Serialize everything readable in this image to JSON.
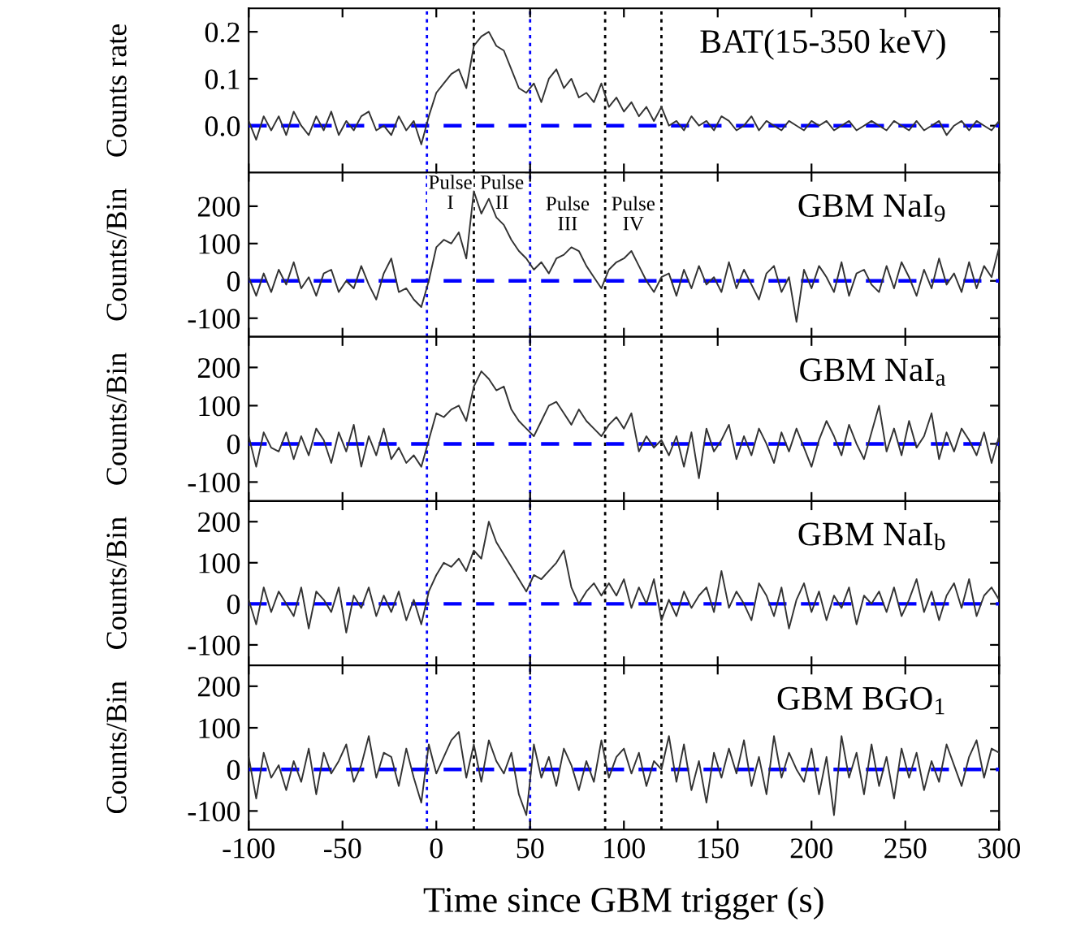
{
  "chart_data": [
    {
      "type": "line",
      "title": "BAT(15-350 keV)",
      "ylabel": "Counts rate",
      "xlim": [
        -100,
        300
      ],
      "xticks": [
        -100,
        -50,
        0,
        50,
        100,
        150,
        200,
        250,
        300
      ],
      "ylim": [
        -0.1,
        0.25
      ],
      "yticks": [
        {
          "value": 0,
          "label": "0.0"
        },
        0.1,
        0.2
      ],
      "tick_labels": "y",
      "grid": false,
      "legend": false,
      "x": [
        -100,
        -96,
        -92,
        -88,
        -84,
        -80,
        -76,
        -72,
        -68,
        -64,
        -60,
        -56,
        -52,
        -48,
        -44,
        -40,
        -36,
        -32,
        -28,
        -24,
        -20,
        -16,
        -12,
        -8,
        -4,
        0,
        4,
        8,
        12,
        16,
        20,
        24,
        28,
        32,
        36,
        40,
        44,
        48,
        52,
        56,
        60,
        64,
        68,
        72,
        76,
        80,
        84,
        88,
        92,
        96,
        100,
        104,
        108,
        112,
        116,
        120,
        124,
        128,
        132,
        136,
        140,
        144,
        148,
        152,
        156,
        160,
        164,
        168,
        172,
        176,
        180,
        184,
        188,
        192,
        196,
        200,
        204,
        208,
        212,
        216,
        220,
        224,
        228,
        232,
        236,
        240,
        244,
        248,
        252,
        256,
        260,
        264,
        268,
        272,
        276,
        280,
        284,
        288,
        292,
        296,
        300
      ],
      "series": [
        {
          "color": "#333333",
          "values": [
            0.01,
            -0.03,
            0.02,
            -0.01,
            0.02,
            -0.02,
            0.03,
            0.0,
            -0.02,
            0.02,
            -0.01,
            0.03,
            -0.02,
            0.01,
            -0.01,
            0.02,
            0.03,
            -0.01,
            0.0,
            -0.02,
            0.02,
            -0.01,
            0.01,
            -0.04,
            0.02,
            0.07,
            0.09,
            0.11,
            0.12,
            0.08,
            0.17,
            0.19,
            0.2,
            0.17,
            0.16,
            0.12,
            0.08,
            0.07,
            0.09,
            0.05,
            0.1,
            0.12,
            0.08,
            0.1,
            0.06,
            0.07,
            0.05,
            0.09,
            0.04,
            0.06,
            0.03,
            0.05,
            0.02,
            0.04,
            0.01,
            0.04,
            0.0,
            0.01,
            -0.01,
            0.02,
            0.0,
            0.01,
            -0.01,
            0.02,
            0.01,
            -0.01,
            0.0,
            0.02,
            -0.01,
            0.01,
            0.0,
            -0.01,
            0.01,
            0.0,
            -0.01,
            0.01,
            0.0,
            0.01,
            -0.01,
            0.0,
            0.01,
            -0.01,
            0.0,
            0.01,
            0.0,
            -0.01,
            0.01,
            0.0,
            -0.01,
            0.01,
            -0.01,
            0.0,
            0.01,
            -0.02,
            0.0,
            0.01,
            -0.01,
            0.01,
            0.0,
            -0.01,
            0.01
          ]
        }
      ],
      "ref_lines": [
        {
          "axis": "y",
          "value": 0,
          "color": "#0000ff",
          "line_style": "dashed"
        },
        {
          "axis": "x",
          "value": -5,
          "color": "#0000ff",
          "line_style": "dotted"
        },
        {
          "axis": "x",
          "value": 20,
          "color": "#000000",
          "line_style": "dotted"
        },
        {
          "axis": "x",
          "value": 50,
          "color": "#0000ff",
          "line_style": "dotted"
        },
        {
          "axis": "x",
          "value": 90,
          "color": "#000000",
          "line_style": "dotted"
        },
        {
          "axis": "x",
          "value": 120,
          "color": "#000000",
          "line_style": "dotted"
        }
      ]
    },
    {
      "type": "line",
      "title": "GBM NaI$_{9}$",
      "ylabel": "Counts/Bin",
      "xlim": [
        -100,
        300
      ],
      "xticks": [
        -100,
        -50,
        0,
        50,
        100,
        150,
        200,
        250,
        300
      ],
      "ylim": [
        -150,
        290
      ],
      "yticks": [
        -100,
        0,
        100,
        200
      ],
      "tick_labels": "y",
      "grid": false,
      "legend": false,
      "x": [
        -100,
        -96,
        -92,
        -88,
        -84,
        -80,
        -76,
        -72,
        -68,
        -64,
        -60,
        -56,
        -52,
        -48,
        -44,
        -40,
        -36,
        -32,
        -28,
        -24,
        -20,
        -16,
        -12,
        -8,
        -4,
        0,
        4,
        8,
        12,
        16,
        20,
        24,
        28,
        32,
        36,
        40,
        44,
        48,
        52,
        56,
        60,
        64,
        68,
        72,
        76,
        80,
        84,
        88,
        92,
        96,
        100,
        104,
        108,
        112,
        116,
        120,
        124,
        128,
        132,
        136,
        140,
        144,
        148,
        152,
        156,
        160,
        164,
        168,
        172,
        176,
        180,
        184,
        188,
        192,
        196,
        200,
        204,
        208,
        212,
        216,
        220,
        224,
        228,
        232,
        236,
        240,
        244,
        248,
        252,
        256,
        260,
        264,
        268,
        272,
        276,
        280,
        284,
        288,
        292,
        296,
        300
      ],
      "series": [
        {
          "color": "#333333",
          "values": [
            10,
            -40,
            20,
            -30,
            30,
            -10,
            50,
            -20,
            10,
            -40,
            20,
            30,
            -30,
            0,
            -20,
            40,
            -10,
            -50,
            20,
            60,
            -30,
            -20,
            -50,
            -70,
            0,
            90,
            110,
            100,
            130,
            60,
            240,
            180,
            220,
            170,
            150,
            110,
            80,
            60,
            30,
            50,
            20,
            60,
            70,
            90,
            80,
            40,
            10,
            -20,
            30,
            50,
            60,
            80,
            40,
            0,
            -30,
            10,
            20,
            -40,
            30,
            -20,
            40,
            -10,
            10,
            -30,
            50,
            -20,
            30,
            -10,
            -50,
            20,
            40,
            -30,
            10,
            -110,
            30,
            -20,
            40,
            10,
            -30,
            50,
            -40,
            20,
            30,
            -10,
            -30,
            40,
            -20,
            50,
            10,
            -40,
            30,
            -20,
            60,
            -10,
            20,
            -30,
            50,
            -20,
            40,
            10,
            90
          ]
        }
      ],
      "annotations": [
        "Pulse\nI",
        "Pulse\nII",
        "Pulse\nIII",
        "Pulse\nIV"
      ],
      "ref_lines": [
        {
          "axis": "y",
          "value": 0,
          "color": "#0000ff",
          "line_style": "dashed"
        },
        {
          "axis": "x",
          "value": -5,
          "color": "#0000ff",
          "line_style": "dotted"
        },
        {
          "axis": "x",
          "value": 20,
          "color": "#000000",
          "line_style": "dotted"
        },
        {
          "axis": "x",
          "value": 50,
          "color": "#0000ff",
          "line_style": "dotted"
        },
        {
          "axis": "x",
          "value": 90,
          "color": "#000000",
          "line_style": "dotted"
        },
        {
          "axis": "x",
          "value": 120,
          "color": "#000000",
          "line_style": "dotted"
        }
      ]
    },
    {
      "type": "line",
      "title": "GBM NaI$_{a}$",
      "ylabel": "Counts/Bin",
      "xlim": [
        -100,
        300
      ],
      "xticks": [
        -100,
        -50,
        0,
        50,
        100,
        150,
        200,
        250,
        300
      ],
      "ylim": [
        -150,
        280
      ],
      "yticks": [
        -100,
        0,
        100,
        200
      ],
      "tick_labels": "y",
      "grid": false,
      "legend": false,
      "x": [
        -100,
        -96,
        -92,
        -88,
        -84,
        -80,
        -76,
        -72,
        -68,
        -64,
        -60,
        -56,
        -52,
        -48,
        -44,
        -40,
        -36,
        -32,
        -28,
        -24,
        -20,
        -16,
        -12,
        -8,
        -4,
        0,
        4,
        8,
        12,
        16,
        20,
        24,
        28,
        32,
        36,
        40,
        44,
        48,
        52,
        56,
        60,
        64,
        68,
        72,
        76,
        80,
        84,
        88,
        92,
        96,
        100,
        104,
        108,
        112,
        116,
        120,
        124,
        128,
        132,
        136,
        140,
        144,
        148,
        152,
        156,
        160,
        164,
        168,
        172,
        176,
        180,
        184,
        188,
        192,
        196,
        200,
        204,
        208,
        212,
        216,
        220,
        224,
        228,
        232,
        236,
        240,
        244,
        248,
        252,
        256,
        260,
        264,
        268,
        272,
        276,
        280,
        284,
        288,
        292,
        296,
        300
      ],
      "series": [
        {
          "color": "#333333",
          "values": [
            20,
            -60,
            30,
            -10,
            -20,
            30,
            -40,
            20,
            -30,
            40,
            10,
            -50,
            30,
            -20,
            50,
            -60,
            20,
            -30,
            40,
            -40,
            -10,
            -50,
            -30,
            -60,
            10,
            80,
            70,
            90,
            100,
            60,
            150,
            190,
            170,
            140,
            150,
            90,
            60,
            40,
            20,
            60,
            100,
            110,
            80,
            50,
            90,
            60,
            40,
            20,
            50,
            70,
            40,
            80,
            -20,
            20,
            -10,
            10,
            -30,
            20,
            -60,
            30,
            -90,
            40,
            -20,
            10,
            50,
            -40,
            20,
            -30,
            40,
            0,
            -50,
            30,
            -20,
            40,
            -10,
            -60,
            10,
            60,
            20,
            -30,
            50,
            0,
            -40,
            30,
            100,
            -20,
            40,
            -30,
            60,
            -10,
            20,
            80,
            -40,
            30,
            -20,
            40,
            10,
            -30,
            30,
            -50,
            20
          ]
        }
      ],
      "ref_lines": [
        {
          "axis": "y",
          "value": 0,
          "color": "#0000ff",
          "line_style": "dashed"
        },
        {
          "axis": "x",
          "value": -5,
          "color": "#0000ff",
          "line_style": "dotted"
        },
        {
          "axis": "x",
          "value": 20,
          "color": "#000000",
          "line_style": "dotted"
        },
        {
          "axis": "x",
          "value": 50,
          "color": "#0000ff",
          "line_style": "dotted"
        },
        {
          "axis": "x",
          "value": 90,
          "color": "#000000",
          "line_style": "dotted"
        },
        {
          "axis": "x",
          "value": 120,
          "color": "#000000",
          "line_style": "dotted"
        }
      ]
    },
    {
      "type": "line",
      "title": "GBM NaI$_{b}$",
      "ylabel": "Counts/Bin",
      "xlim": [
        -100,
        300
      ],
      "xticks": [
        -100,
        -50,
        0,
        50,
        100,
        150,
        200,
        250,
        300
      ],
      "ylim": [
        -150,
        250
      ],
      "yticks": [
        -100,
        0,
        100,
        200
      ],
      "tick_labels": "y",
      "grid": false,
      "legend": false,
      "x": [
        -100,
        -96,
        -92,
        -88,
        -84,
        -80,
        -76,
        -72,
        -68,
        -64,
        -60,
        -56,
        -52,
        -48,
        -44,
        -40,
        -36,
        -32,
        -28,
        -24,
        -20,
        -16,
        -12,
        -8,
        -4,
        0,
        4,
        8,
        12,
        16,
        20,
        24,
        28,
        32,
        36,
        40,
        44,
        48,
        52,
        56,
        60,
        64,
        68,
        72,
        76,
        80,
        84,
        88,
        92,
        96,
        100,
        104,
        108,
        112,
        116,
        120,
        124,
        128,
        132,
        136,
        140,
        144,
        148,
        152,
        156,
        160,
        164,
        168,
        172,
        176,
        180,
        184,
        188,
        192,
        196,
        200,
        204,
        208,
        212,
        216,
        220,
        224,
        228,
        232,
        236,
        240,
        244,
        248,
        252,
        256,
        260,
        264,
        268,
        272,
        276,
        280,
        284,
        288,
        292,
        296,
        300
      ],
      "series": [
        {
          "color": "#333333",
          "values": [
            10,
            -50,
            40,
            -20,
            30,
            0,
            -30,
            40,
            -60,
            30,
            10,
            -20,
            40,
            -70,
            20,
            -10,
            40,
            -30,
            20,
            -20,
            30,
            -40,
            10,
            -50,
            30,
            70,
            100,
            90,
            110,
            80,
            130,
            110,
            200,
            150,
            120,
            90,
            60,
            30,
            70,
            60,
            80,
            100,
            130,
            40,
            0,
            30,
            50,
            20,
            50,
            20,
            60,
            -10,
            40,
            0,
            60,
            -40,
            10,
            -30,
            30,
            -10,
            20,
            40,
            -20,
            80,
            -10,
            30,
            0,
            -40,
            50,
            20,
            -30,
            40,
            -60,
            10,
            50,
            -20,
            30,
            -40,
            20,
            -10,
            40,
            -50,
            20,
            0,
            30,
            -20,
            40,
            -30,
            10,
            60,
            -20,
            30,
            -40,
            20,
            50,
            -10,
            60,
            -30,
            20,
            40,
            10
          ]
        }
      ],
      "ref_lines": [
        {
          "axis": "y",
          "value": 0,
          "color": "#0000ff",
          "line_style": "dashed"
        },
        {
          "axis": "x",
          "value": -5,
          "color": "#0000ff",
          "line_style": "dotted"
        },
        {
          "axis": "x",
          "value": 20,
          "color": "#000000",
          "line_style": "dotted"
        },
        {
          "axis": "x",
          "value": 50,
          "color": "#0000ff",
          "line_style": "dotted"
        },
        {
          "axis": "x",
          "value": 90,
          "color": "#000000",
          "line_style": "dotted"
        },
        {
          "axis": "x",
          "value": 120,
          "color": "#000000",
          "line_style": "dotted"
        }
      ]
    },
    {
      "type": "line",
      "title": "GBM BGO$_{1}$",
      "ylabel": "Counts/Bin",
      "xlabel": "Time since GBM trigger (s)",
      "xlim": [
        -100,
        300
      ],
      "xticks": [
        -100,
        -50,
        0,
        50,
        100,
        150,
        200,
        250,
        300
      ],
      "ylim": [
        -145,
        250
      ],
      "yticks": [
        -100,
        0,
        100,
        200
      ],
      "grid": false,
      "legend": false,
      "x": [
        -100,
        -96,
        -92,
        -88,
        -84,
        -80,
        -76,
        -72,
        -68,
        -64,
        -60,
        -56,
        -52,
        -48,
        -44,
        -40,
        -36,
        -32,
        -28,
        -24,
        -20,
        -16,
        -12,
        -8,
        -4,
        0,
        4,
        8,
        12,
        16,
        20,
        24,
        28,
        32,
        36,
        40,
        44,
        48,
        52,
        56,
        60,
        64,
        68,
        72,
        76,
        80,
        84,
        88,
        92,
        96,
        100,
        104,
        108,
        112,
        116,
        120,
        124,
        128,
        132,
        136,
        140,
        144,
        148,
        152,
        156,
        160,
        164,
        168,
        172,
        176,
        180,
        184,
        188,
        192,
        196,
        200,
        204,
        208,
        212,
        216,
        220,
        224,
        228,
        232,
        236,
        240,
        244,
        248,
        252,
        256,
        260,
        264,
        268,
        272,
        276,
        280,
        284,
        288,
        292,
        296,
        300
      ],
      "series": [
        {
          "color": "#333333",
          "values": [
            30,
            -70,
            40,
            -20,
            10,
            -50,
            20,
            -30,
            50,
            -60,
            40,
            -10,
            20,
            60,
            -30,
            10,
            80,
            -20,
            40,
            30,
            -40,
            50,
            -20,
            -80,
            60,
            -10,
            30,
            70,
            90,
            -20,
            60,
            -30,
            70,
            20,
            -10,
            40,
            -60,
            -110,
            60,
            -20,
            30,
            -40,
            50,
            10,
            -50,
            20,
            -30,
            70,
            -20,
            30,
            50,
            -10,
            40,
            -40,
            20,
            0,
            80,
            -30,
            60,
            -50,
            20,
            -80,
            40,
            -20,
            50,
            -10,
            70,
            -40,
            30,
            -60,
            80,
            -20,
            40,
            0,
            -30,
            50,
            -60,
            30,
            -110,
            80,
            -20,
            40,
            -60,
            60,
            -40,
            30,
            -70,
            50,
            -20,
            40,
            -50,
            20,
            -30,
            60,
            10,
            -40,
            30,
            70,
            -20,
            50,
            40
          ]
        }
      ],
      "ref_lines": [
        {
          "axis": "y",
          "value": 0,
          "color": "#0000ff",
          "line_style": "dashed"
        },
        {
          "axis": "x",
          "value": -5,
          "color": "#0000ff",
          "line_style": "dotted"
        },
        {
          "axis": "x",
          "value": 20,
          "color": "#000000",
          "line_style": "dotted"
        },
        {
          "axis": "x",
          "value": 50,
          "color": "#0000ff",
          "line_style": "dotted"
        },
        {
          "axis": "x",
          "value": 90,
          "color": "#000000",
          "line_style": "dotted"
        },
        {
          "axis": "x",
          "value": 120,
          "color": "#000000",
          "line_style": "dotted"
        }
      ]
    }
  ]
}
